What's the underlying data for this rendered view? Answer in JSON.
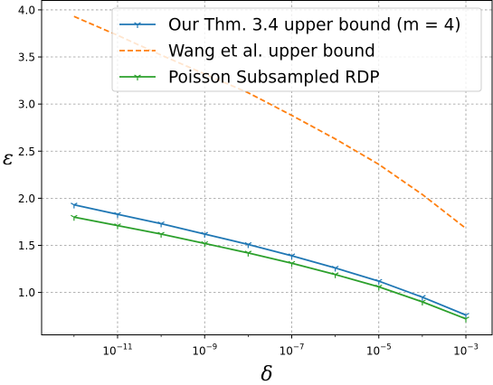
{
  "chart_data": {
    "type": "line",
    "xlabel": "δ",
    "ylabel": "ε",
    "x_scale": "log",
    "x": [
      1e-12,
      1e-11,
      1e-10,
      1e-09,
      1e-08,
      1e-07,
      1e-06,
      1e-05,
      0.0001,
      0.001
    ],
    "xlim": [
      1.8e-13,
      0.004
    ],
    "ylim": [
      0.55,
      4.1
    ],
    "x_ticks": [
      1e-11,
      1e-09,
      1e-07,
      1e-05,
      0.001
    ],
    "x_tick_labels": [
      {
        "base": "10",
        "exp": "−11"
      },
      {
        "base": "10",
        "exp": "−9"
      },
      {
        "base": "10",
        "exp": "−7"
      },
      {
        "base": "10",
        "exp": "−5"
      },
      {
        "base": "10",
        "exp": "−3"
      }
    ],
    "y_ticks": [
      1.0,
      1.5,
      2.0,
      2.5,
      3.0,
      3.5,
      4.0
    ],
    "y_tick_labels": [
      "1.0",
      "1.5",
      "2.0",
      "2.5",
      "3.0",
      "3.5",
      "4.0"
    ],
    "grid": true,
    "legend_position": "top-right",
    "series": [
      {
        "name": "Our Thm. 3.4 upper bound (m = 4)",
        "color": "#1f77b4",
        "style": "solid",
        "marker": "tri-down",
        "values": [
          1.93,
          1.83,
          1.73,
          1.62,
          1.51,
          1.39,
          1.26,
          1.12,
          0.95,
          0.76
        ]
      },
      {
        "name": "Wang et al. upper bound",
        "color": "#ff7f0e",
        "style": "dashed",
        "marker": "none",
        "values": [
          3.93,
          3.73,
          3.52,
          3.32,
          3.12,
          2.88,
          2.63,
          2.36,
          2.04,
          1.68
        ]
      },
      {
        "name": "Poisson Subsampled RDP",
        "color": "#2ca02c",
        "style": "solid",
        "marker": "tri-down",
        "values": [
          1.8,
          1.71,
          1.62,
          1.52,
          1.42,
          1.31,
          1.19,
          1.06,
          0.9,
          0.72
        ]
      }
    ]
  }
}
